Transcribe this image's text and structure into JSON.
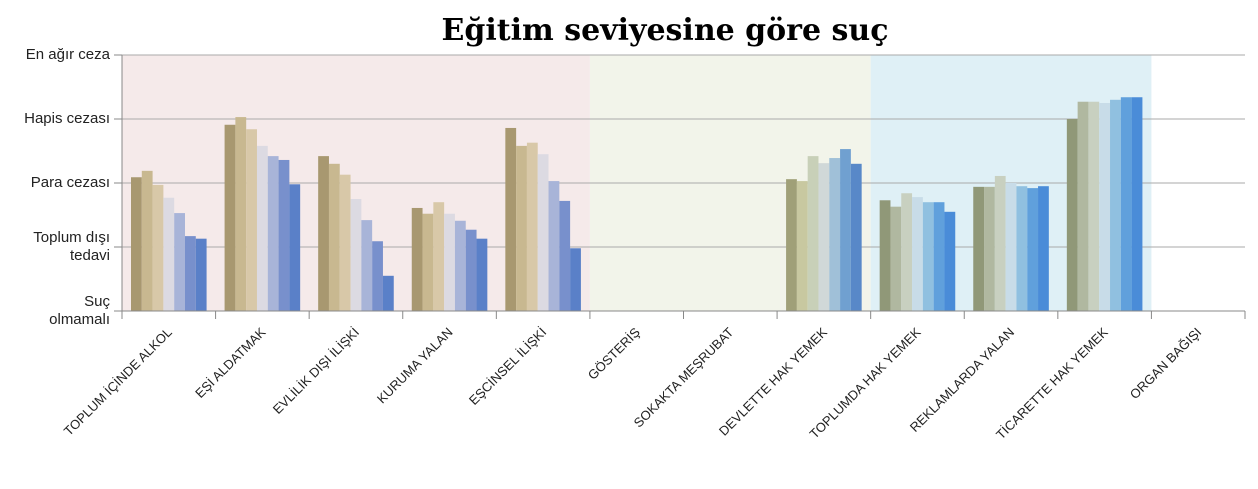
{
  "chart_data": {
    "type": "bar",
    "title": "Eğitim seviyesine göre suç",
    "categories": [
      "TOPLUM İÇİNDE ALKOL",
      "EŞİ ALDATMAK",
      "EVLİLİK DIŞI İLİŞKİ",
      "KURUMA YALAN",
      "EŞCİNSEL İLİŞKİ",
      "GÖSTERİŞ",
      "SOKAKTA MEŞRUBAT",
      "DEVLETTE HAK YEMEK",
      "TOPLUMDA HAK YEMEK",
      "REKLAMLARDA YALAN",
      "TİCARETTE HAK YEMEK",
      "ORGAN BAĞIŞI"
    ],
    "series": [
      {
        "values": [
          2.09,
          2.91,
          2.42,
          1.61,
          2.86,
          null,
          null,
          2.06,
          1.73,
          1.94,
          3.0,
          null
        ]
      },
      {
        "values": [
          2.19,
          3.03,
          2.3,
          1.52,
          2.58,
          null,
          null,
          2.03,
          1.63,
          1.94,
          3.27,
          null
        ]
      },
      {
        "values": [
          1.97,
          2.84,
          2.13,
          1.7,
          2.63,
          null,
          null,
          2.42,
          1.84,
          2.11,
          3.27,
          null
        ]
      },
      {
        "values": [
          1.77,
          2.58,
          1.75,
          1.52,
          2.45,
          null,
          null,
          2.31,
          1.78,
          2.0,
          3.25,
          null
        ]
      },
      {
        "values": [
          1.53,
          2.42,
          1.42,
          1.41,
          2.03,
          null,
          null,
          2.39,
          1.7,
          1.95,
          3.3,
          null
        ]
      },
      {
        "values": [
          1.17,
          2.36,
          1.09,
          1.27,
          1.72,
          null,
          null,
          2.53,
          1.7,
          1.92,
          3.34,
          null
        ]
      },
      {
        "values": [
          1.13,
          1.98,
          0.55,
          1.13,
          0.98,
          null,
          null,
          2.3,
          1.55,
          1.95,
          3.34,
          null
        ]
      }
    ],
    "palettes": [
      [
        "#a89870",
        "#c8b890",
        "#d8c8a8",
        "#dcdae2",
        "#a8b4d8",
        "#7890cc",
        "#5a80c8"
      ],
      [
        "#a0a078",
        "#c8c8a0",
        "#c8d0b8",
        "#d0d8d8",
        "#a0c0d8",
        "#70a0d0",
        "#5888c8"
      ],
      [
        "#909878",
        "#b0b8a0",
        "#c8d0c0",
        "#c8dce8",
        "#90c0e0",
        "#60a0dc",
        "#4a8cd8"
      ]
    ],
    "category_palette": [
      0,
      0,
      0,
      0,
      0,
      1,
      1,
      1,
      2,
      2,
      2,
      2
    ],
    "regions": [
      {
        "from": 0,
        "to": 4,
        "color": "#f5eaea"
      },
      {
        "from": 5,
        "to": 7,
        "color": "#f2f4ea"
      },
      {
        "from": 8,
        "to": 10,
        "color": "#dff0f6"
      }
    ],
    "ylim": [
      0,
      4
    ],
    "yticks": [
      {
        "value": 0,
        "label": "Suç olmamalı"
      },
      {
        "value": 1,
        "label": "Toplum dışı tedavi"
      },
      {
        "value": 2,
        "label": "Para cezası"
      },
      {
        "value": 3,
        "label": "Hapis cezası"
      },
      {
        "value": 4,
        "label": "En ağır ceza"
      }
    ],
    "grid": true
  }
}
